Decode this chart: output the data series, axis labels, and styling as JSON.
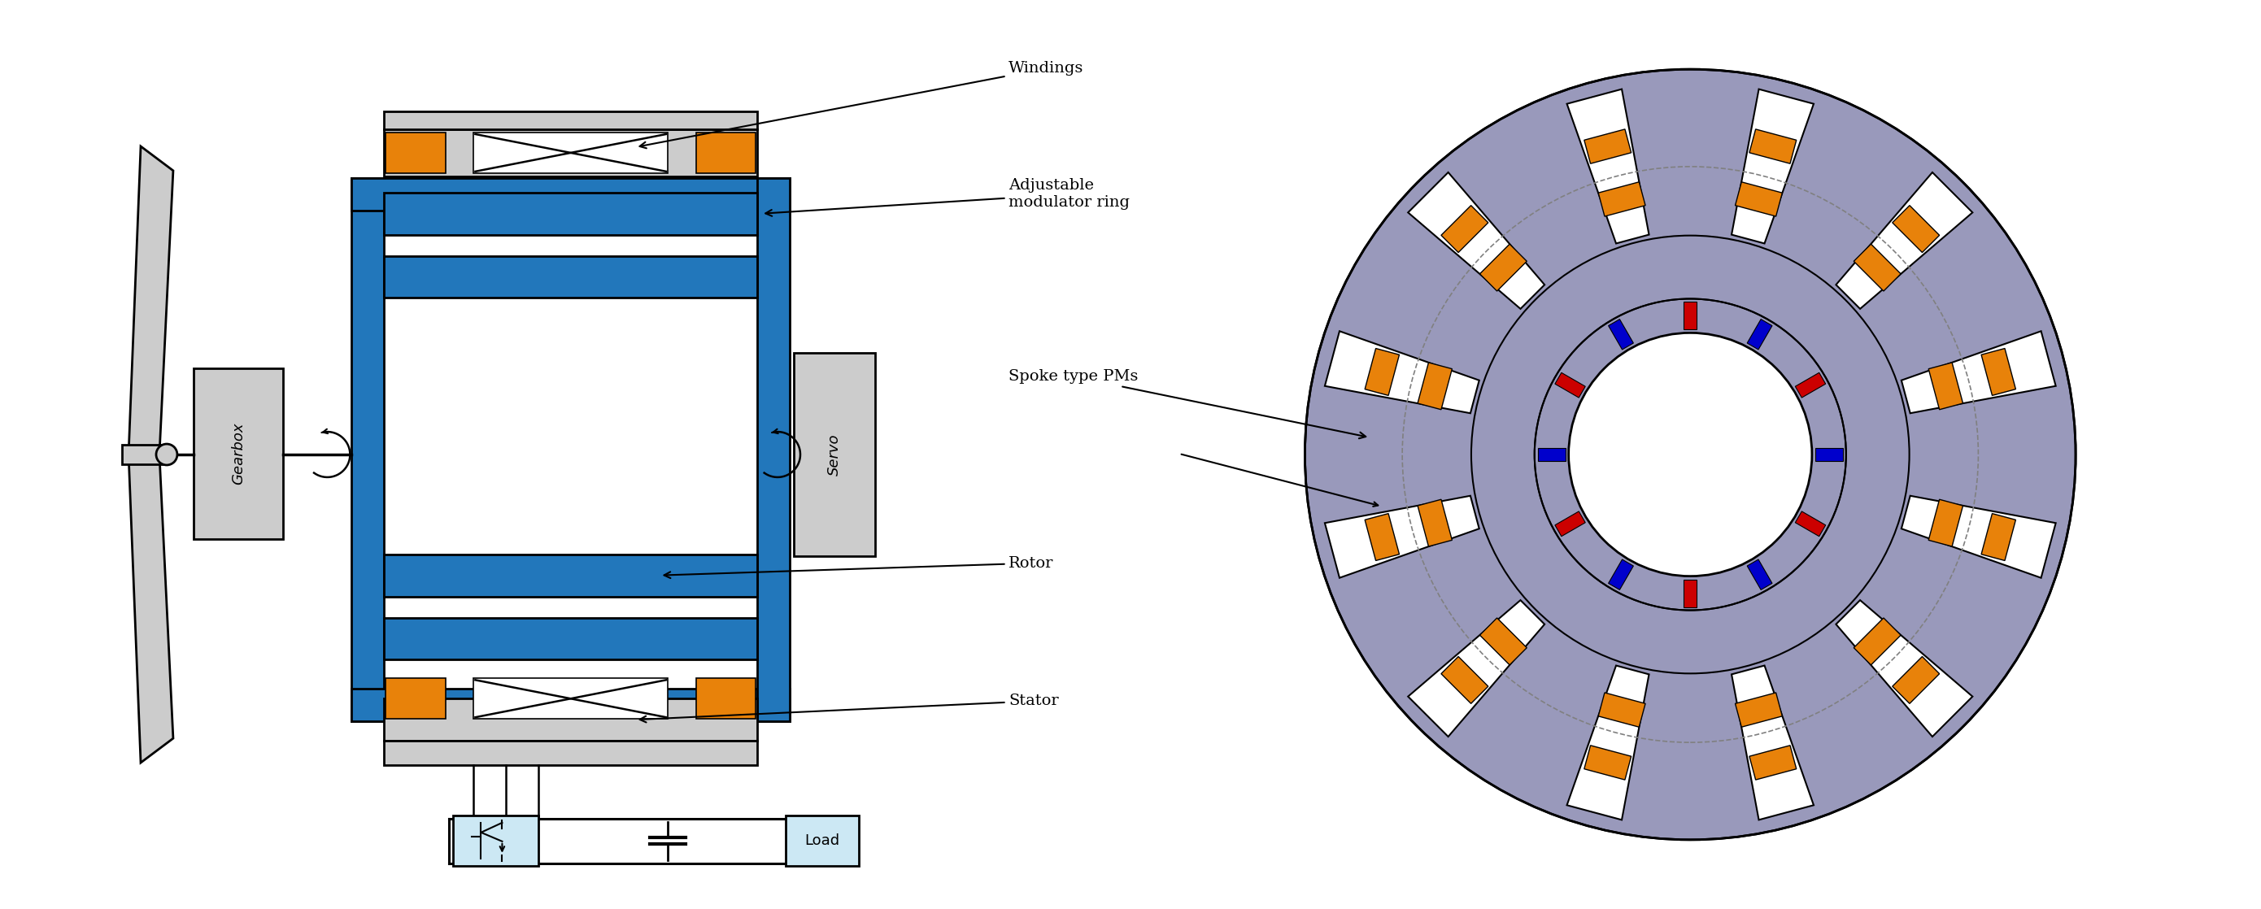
{
  "bg_color": "#ffffff",
  "blue_color": "#2277bb",
  "light_blue": "#cce8f4",
  "gray_color": "#999999",
  "light_gray": "#cccccc",
  "orange_color": "#e8820a",
  "stator_bg": "#9999bb",
  "white": "#ffffff",
  "red_color": "#cc0000",
  "dark_blue": "#0000cc",
  "labels": {
    "windings": "Windings",
    "adj_mod": "Adjustable\nmodulator ring",
    "spoke_pms": "Spoke type PMs",
    "rotor": "Rotor",
    "stator": "Stator",
    "gearbox": "Gearbox",
    "servo": "Servo",
    "load": "Load"
  },
  "font_size": 13
}
